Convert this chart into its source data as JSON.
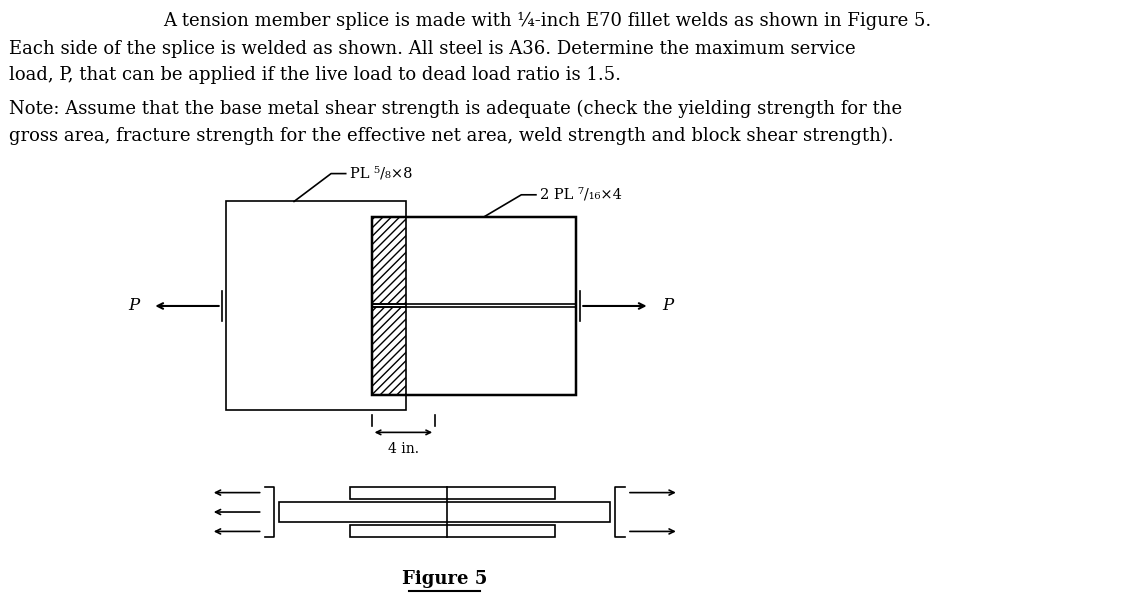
{
  "title_line1": "A tension member splice is made with ¼-inch E70 fillet welds as shown in Figure 5.",
  "title_line2": "Each side of the splice is welded as shown. All steel is A36. Determine the maximum service",
  "title_line3": "load, P, that can be applied if the live load to dead load ratio is 1.5.",
  "note_line1": "Note: Assume that the base metal shear strength is adequate (check the yielding strength for the",
  "note_line2": "gross area, fracture strength for the effective net area, weld strength and block shear strength).",
  "label_pl1": "PL ⁵/₈×8",
  "label_pl2": "2 PL ⁷/₁₆×4",
  "label_4in": "4 in.",
  "label_P": "P",
  "label_figure": "Figure 5",
  "bg_color": "#ffffff",
  "line_color": "#000000",
  "font_size_text": 13,
  "font_size_label": 11,
  "font_size_figure": 13
}
